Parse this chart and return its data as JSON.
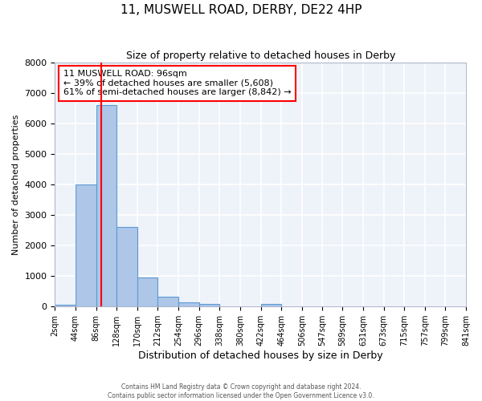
{
  "title": "11, MUSWELL ROAD, DERBY, DE22 4HP",
  "subtitle": "Size of property relative to detached houses in Derby",
  "xlabel": "Distribution of detached houses by size in Derby",
  "ylabel": "Number of detached properties",
  "bar_color": "#aec6e8",
  "bar_edge_color": "#5b9bd5",
  "background_color": "#eef2f9",
  "grid_color": "#ffffff",
  "bin_edges": [
    2,
    44,
    86,
    128,
    170,
    212,
    254,
    296,
    338,
    380,
    422,
    464,
    506,
    547,
    589,
    631,
    673,
    715,
    757,
    799,
    841
  ],
  "bin_labels": [
    "2sqm",
    "44sqm",
    "86sqm",
    "128sqm",
    "170sqm",
    "212sqm",
    "254sqm",
    "296sqm",
    "338sqm",
    "380sqm",
    "422sqm",
    "464sqm",
    "506sqm",
    "547sqm",
    "589sqm",
    "631sqm",
    "673sqm",
    "715sqm",
    "757sqm",
    "799sqm",
    "841sqm"
  ],
  "bar_heights": [
    50,
    4000,
    6600,
    2600,
    950,
    320,
    140,
    90,
    0,
    0,
    90,
    0,
    0,
    0,
    0,
    0,
    0,
    0,
    0,
    0
  ],
  "ylim": [
    0,
    8000
  ],
  "yticks": [
    0,
    1000,
    2000,
    3000,
    4000,
    5000,
    6000,
    7000,
    8000
  ],
  "property_line_x": 96,
  "annotation_title": "11 MUSWELL ROAD: 96sqm",
  "annotation_line1": "← 39% of detached houses are smaller (5,608)",
  "annotation_line2": "61% of semi-detached houses are larger (8,842) →",
  "footer_line1": "Contains HM Land Registry data © Crown copyright and database right 2024.",
  "footer_line2": "Contains public sector information licensed under the Open Government Licence v3.0."
}
